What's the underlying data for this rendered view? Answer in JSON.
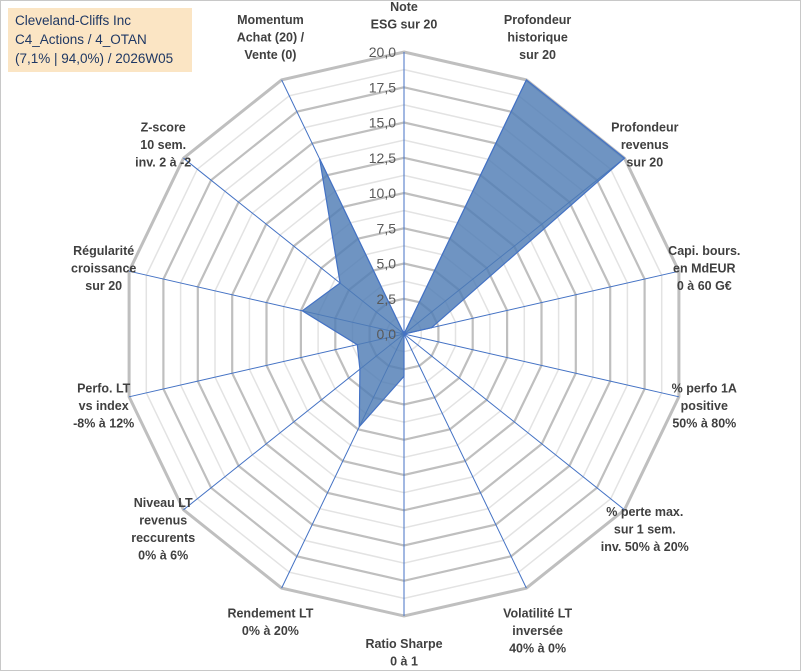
{
  "header": {
    "line1": "Cleveland-Cliffs Inc",
    "line2": "C4_Actions / 4_OTAN",
    "line3": "(7,1% | 94,0%) / 2026W05"
  },
  "chart_data": {
    "type": "radar",
    "title": "Cleveland-Cliffs Inc C4_Actions / 4_OTAN (7,1% | 94,0%) / 2026W05",
    "rlim": [
      0,
      20
    ],
    "grid": true,
    "ticks": [
      "0,0",
      "2,5",
      "5,0",
      "7,5",
      "10,0",
      "12,5",
      "15,0",
      "17,5",
      "20,0"
    ],
    "axes": [
      [
        "Note",
        "ESG sur 20"
      ],
      [
        "Profondeur",
        "historique",
        "sur 20"
      ],
      [
        "Profondeur",
        "revenus",
        "sur 20"
      ],
      [
        "Capi. bours.",
        "en MdEUR",
        "0 à 60 G€"
      ],
      [
        "% perfo 1A",
        "positive",
        "50% à 80%"
      ],
      [
        "% perte max.",
        "sur 1 sem.",
        "inv. 50% à 20%"
      ],
      [
        "Volatilité LT",
        "inversée",
        "40% à 0%"
      ],
      [
        "Ratio Sharpe",
        "0 à 1"
      ],
      [
        "Rendement LT",
        "0% à 20%"
      ],
      [
        "Niveau LT",
        "revenus",
        "reccurents",
        "0% à 6%"
      ],
      [
        "Perfo. LT",
        "vs index",
        "-8% à 12%"
      ],
      [
        "Régularité",
        "croissance",
        "sur 20"
      ],
      [
        "Z-score",
        "10 sem.",
        "inv. 2 à -2"
      ],
      [
        "Momentum",
        "Achat (20) /",
        "Vente (0)"
      ]
    ],
    "values": [
      0,
      20,
      20,
      2,
      0,
      0,
      0,
      3,
      7.3,
      4,
      3.4,
      7.4,
      5.8,
      13.8
    ],
    "colors": {
      "fill": "#4f7db5",
      "stroke": "#4472c4",
      "grid": "#bfbfbf"
    }
  }
}
